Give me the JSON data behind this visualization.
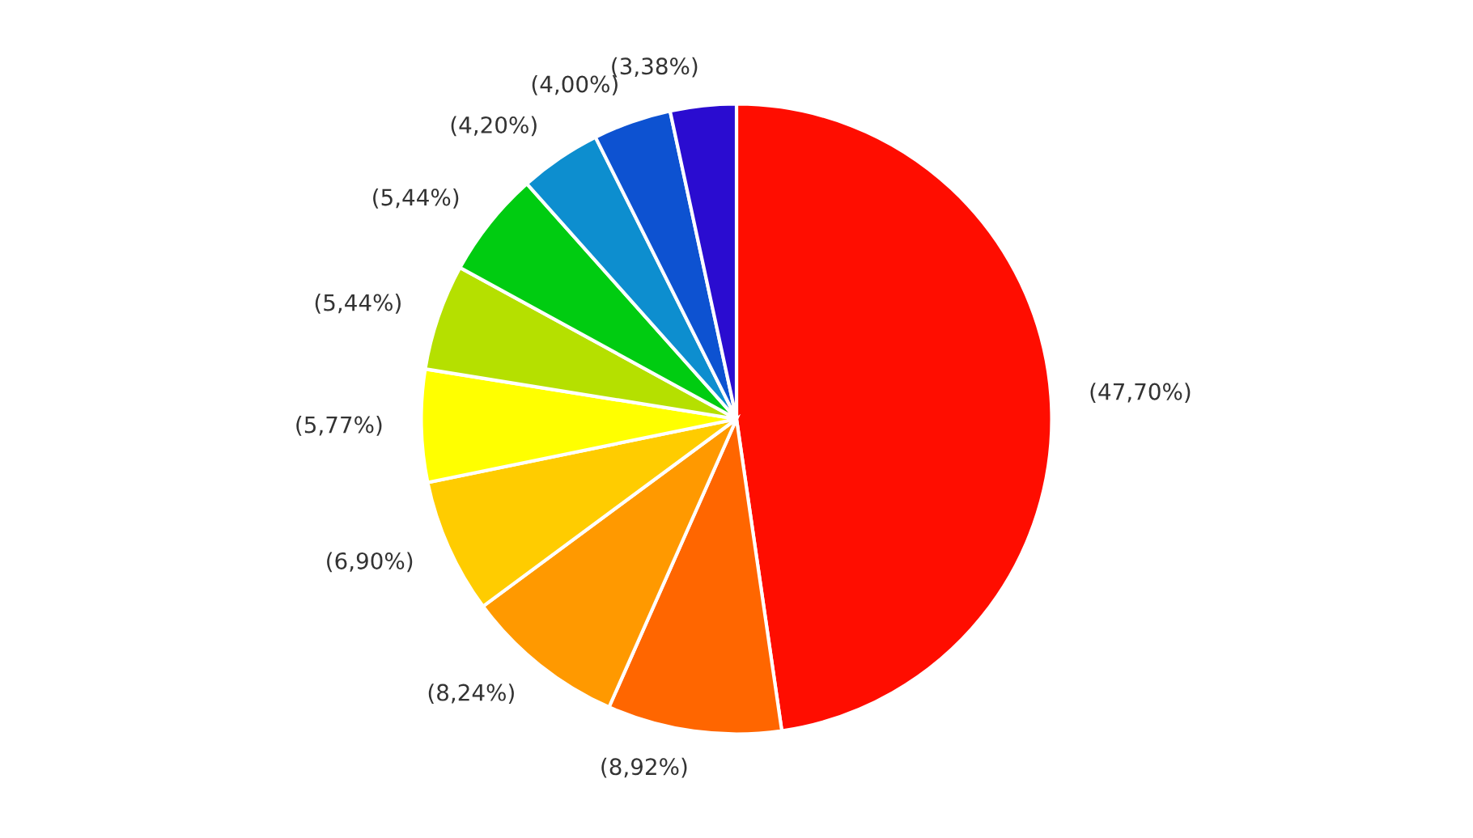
{
  "chart_data": {
    "type": "pie",
    "categories": [
      null,
      null,
      null,
      null,
      null,
      null,
      null,
      null,
      null,
      null
    ],
    "values": [
      47.7,
      8.92,
      8.24,
      6.9,
      5.77,
      5.44,
      5.44,
      4.2,
      4.0,
      3.38
    ],
    "value_labels": [
      "(47,70%)",
      "(8,92%)",
      "(8,24%)",
      "(6,90%)",
      "(5,77%)",
      "(5,44%)",
      "(5,44%)",
      "(4,20%)",
      "(4,00%)",
      "(3,38%)"
    ],
    "colors": [
      "#ff0d00",
      "#ff6600",
      "#ff9900",
      "#ffcc00",
      "#ffff00",
      "#b5e000",
      "#00cc11",
      "#0d8ecf",
      "#0d52d1",
      "#2a0cd0"
    ]
  }
}
